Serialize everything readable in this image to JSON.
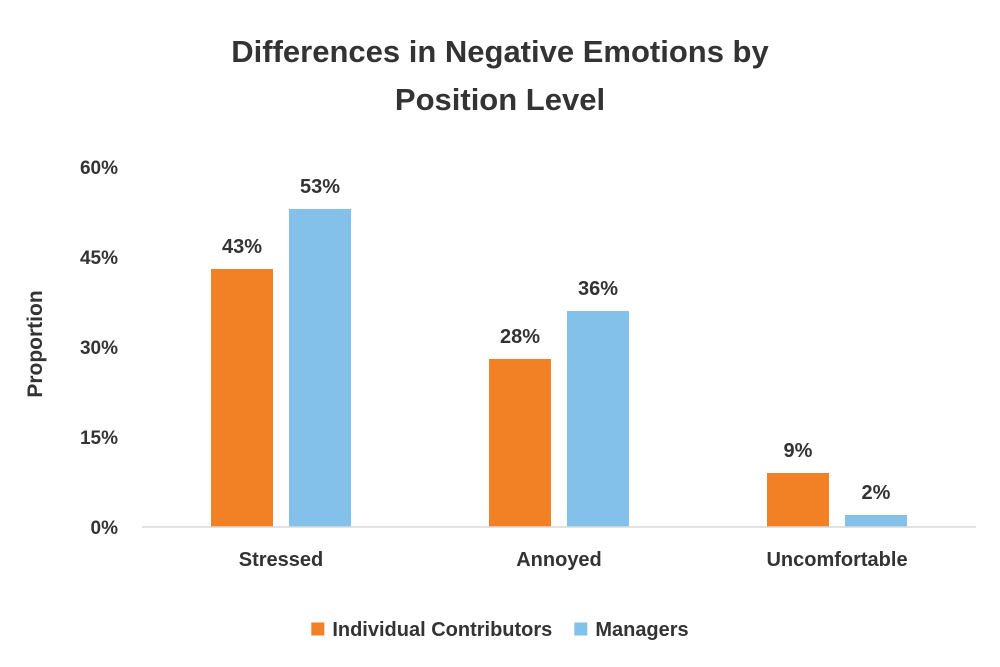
{
  "chart_data": {
    "type": "bar",
    "title": "Differences in Negative Emotions by Position Level",
    "title_lines": [
      "Differences in Negative Emotions by",
      "Position Level"
    ],
    "xlabel": "",
    "ylabel": "Proportion",
    "ylim": [
      0,
      60
    ],
    "yticks": [
      0,
      15,
      30,
      45,
      60
    ],
    "ytick_labels": [
      "0%",
      "15%",
      "30%",
      "45%",
      "60%"
    ],
    "grid": false,
    "legend_position": "bottom",
    "categories": [
      "Stressed",
      "Annoyed",
      "Uncomfortable"
    ],
    "series": [
      {
        "name": "Individual Contributors",
        "color": "#F28024",
        "values": [
          43,
          28,
          9
        ],
        "labels": [
          "43%",
          "28%",
          "9%"
        ]
      },
      {
        "name": "Managers",
        "color": "#83C0EA",
        "values": [
          53,
          36,
          2
        ],
        "labels": [
          "53%",
          "36%",
          "2%"
        ]
      }
    ]
  }
}
